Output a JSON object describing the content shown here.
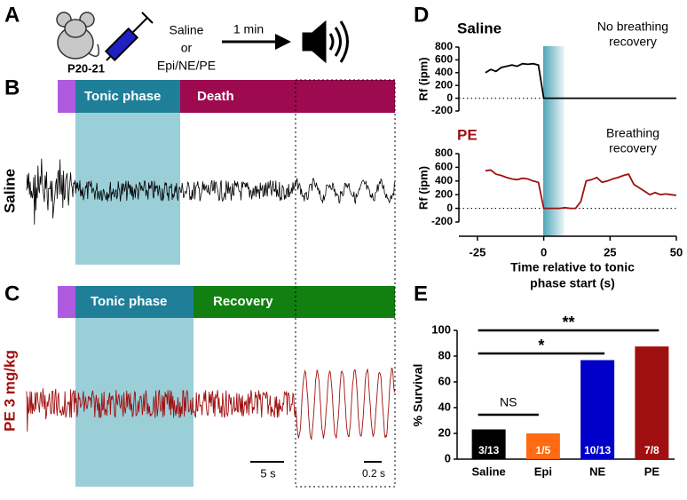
{
  "panels": {
    "a": {
      "letter": "A",
      "mouse_label": "P20-21",
      "treatment": [
        "Saline",
        "or",
        "Epi/NE/PE"
      ],
      "delay": "1 min"
    },
    "b": {
      "letter": "B",
      "trace_label": "Saline",
      "phases": [
        "Tonic phase",
        "Death"
      ]
    },
    "c": {
      "letter": "C",
      "trace_label": "PE 3 mg/kg",
      "phases": [
        "Tonic phase",
        "Recovery"
      ],
      "scale_bars": [
        "5 s",
        "0.2 s"
      ]
    },
    "d": {
      "letter": "D"
    },
    "e": {
      "letter": "E"
    }
  },
  "chart_data": [
    {
      "type": "line",
      "title": "Saline",
      "title_color": "#000000",
      "annotation": [
        "No breathing",
        "recovery"
      ],
      "ylabel": "Rf (ipm)",
      "xlim": [
        -32,
        50
      ],
      "ylim": [
        -200,
        800
      ],
      "yticks": [
        -200,
        0,
        200,
        400,
        600,
        800
      ],
      "series": [
        {
          "name": "Saline",
          "color": "#000000",
          "x": [
            -22,
            -20,
            -18,
            -16,
            -14,
            -12,
            -10,
            -8,
            -6,
            -4,
            -2,
            0,
            50
          ],
          "values": [
            400,
            450,
            420,
            480,
            500,
            520,
            500,
            540,
            530,
            540,
            520,
            0,
            0
          ]
        }
      ]
    },
    {
      "type": "line",
      "title": "PE",
      "title_color": "#a01010",
      "annotation": [
        "Breathing",
        "recovery"
      ],
      "ylabel": "Rf (ipm)",
      "xlabel": [
        "Time relative to tonic",
        "phase start (s)"
      ],
      "xlim": [
        -32,
        50
      ],
      "ylim": [
        -200,
        800
      ],
      "yticks": [
        -200,
        0,
        200,
        400,
        600,
        800
      ],
      "xticks": [
        -25,
        0,
        25,
        50
      ],
      "series": [
        {
          "name": "PE",
          "color": "#a01010",
          "x": [
            -22,
            -20,
            -18,
            -16,
            -14,
            -12,
            -10,
            -8,
            -6,
            -4,
            -2,
            0,
            2,
            4,
            6,
            8,
            10,
            12,
            14,
            16,
            18,
            20,
            22,
            24,
            26,
            28,
            30,
            32,
            34,
            36,
            38,
            40,
            42,
            44,
            46,
            48,
            50
          ],
          "values": [
            550,
            560,
            500,
            480,
            450,
            430,
            420,
            440,
            430,
            400,
            380,
            0,
            0,
            0,
            0,
            10,
            0,
            0,
            100,
            400,
            420,
            450,
            380,
            400,
            430,
            450,
            480,
            500,
            350,
            300,
            250,
            200,
            230,
            200,
            210,
            200,
            190
          ]
        }
      ]
    },
    {
      "type": "bar",
      "ylabel": "% Survival",
      "categories": [
        "Saline",
        "Epi",
        "NE",
        "PE"
      ],
      "values": [
        23.1,
        20,
        76.9,
        87.5
      ],
      "value_labels": [
        "3/13",
        "1/5",
        "10/13",
        "7/8"
      ],
      "colors": [
        "#000000",
        "#ff6a13",
        "#0000c8",
        "#a01010"
      ],
      "ylim": [
        0,
        100
      ],
      "yticks": [
        0,
        20,
        40,
        60,
        80,
        100
      ],
      "comparisons": [
        "NS",
        "*",
        "**"
      ]
    }
  ]
}
